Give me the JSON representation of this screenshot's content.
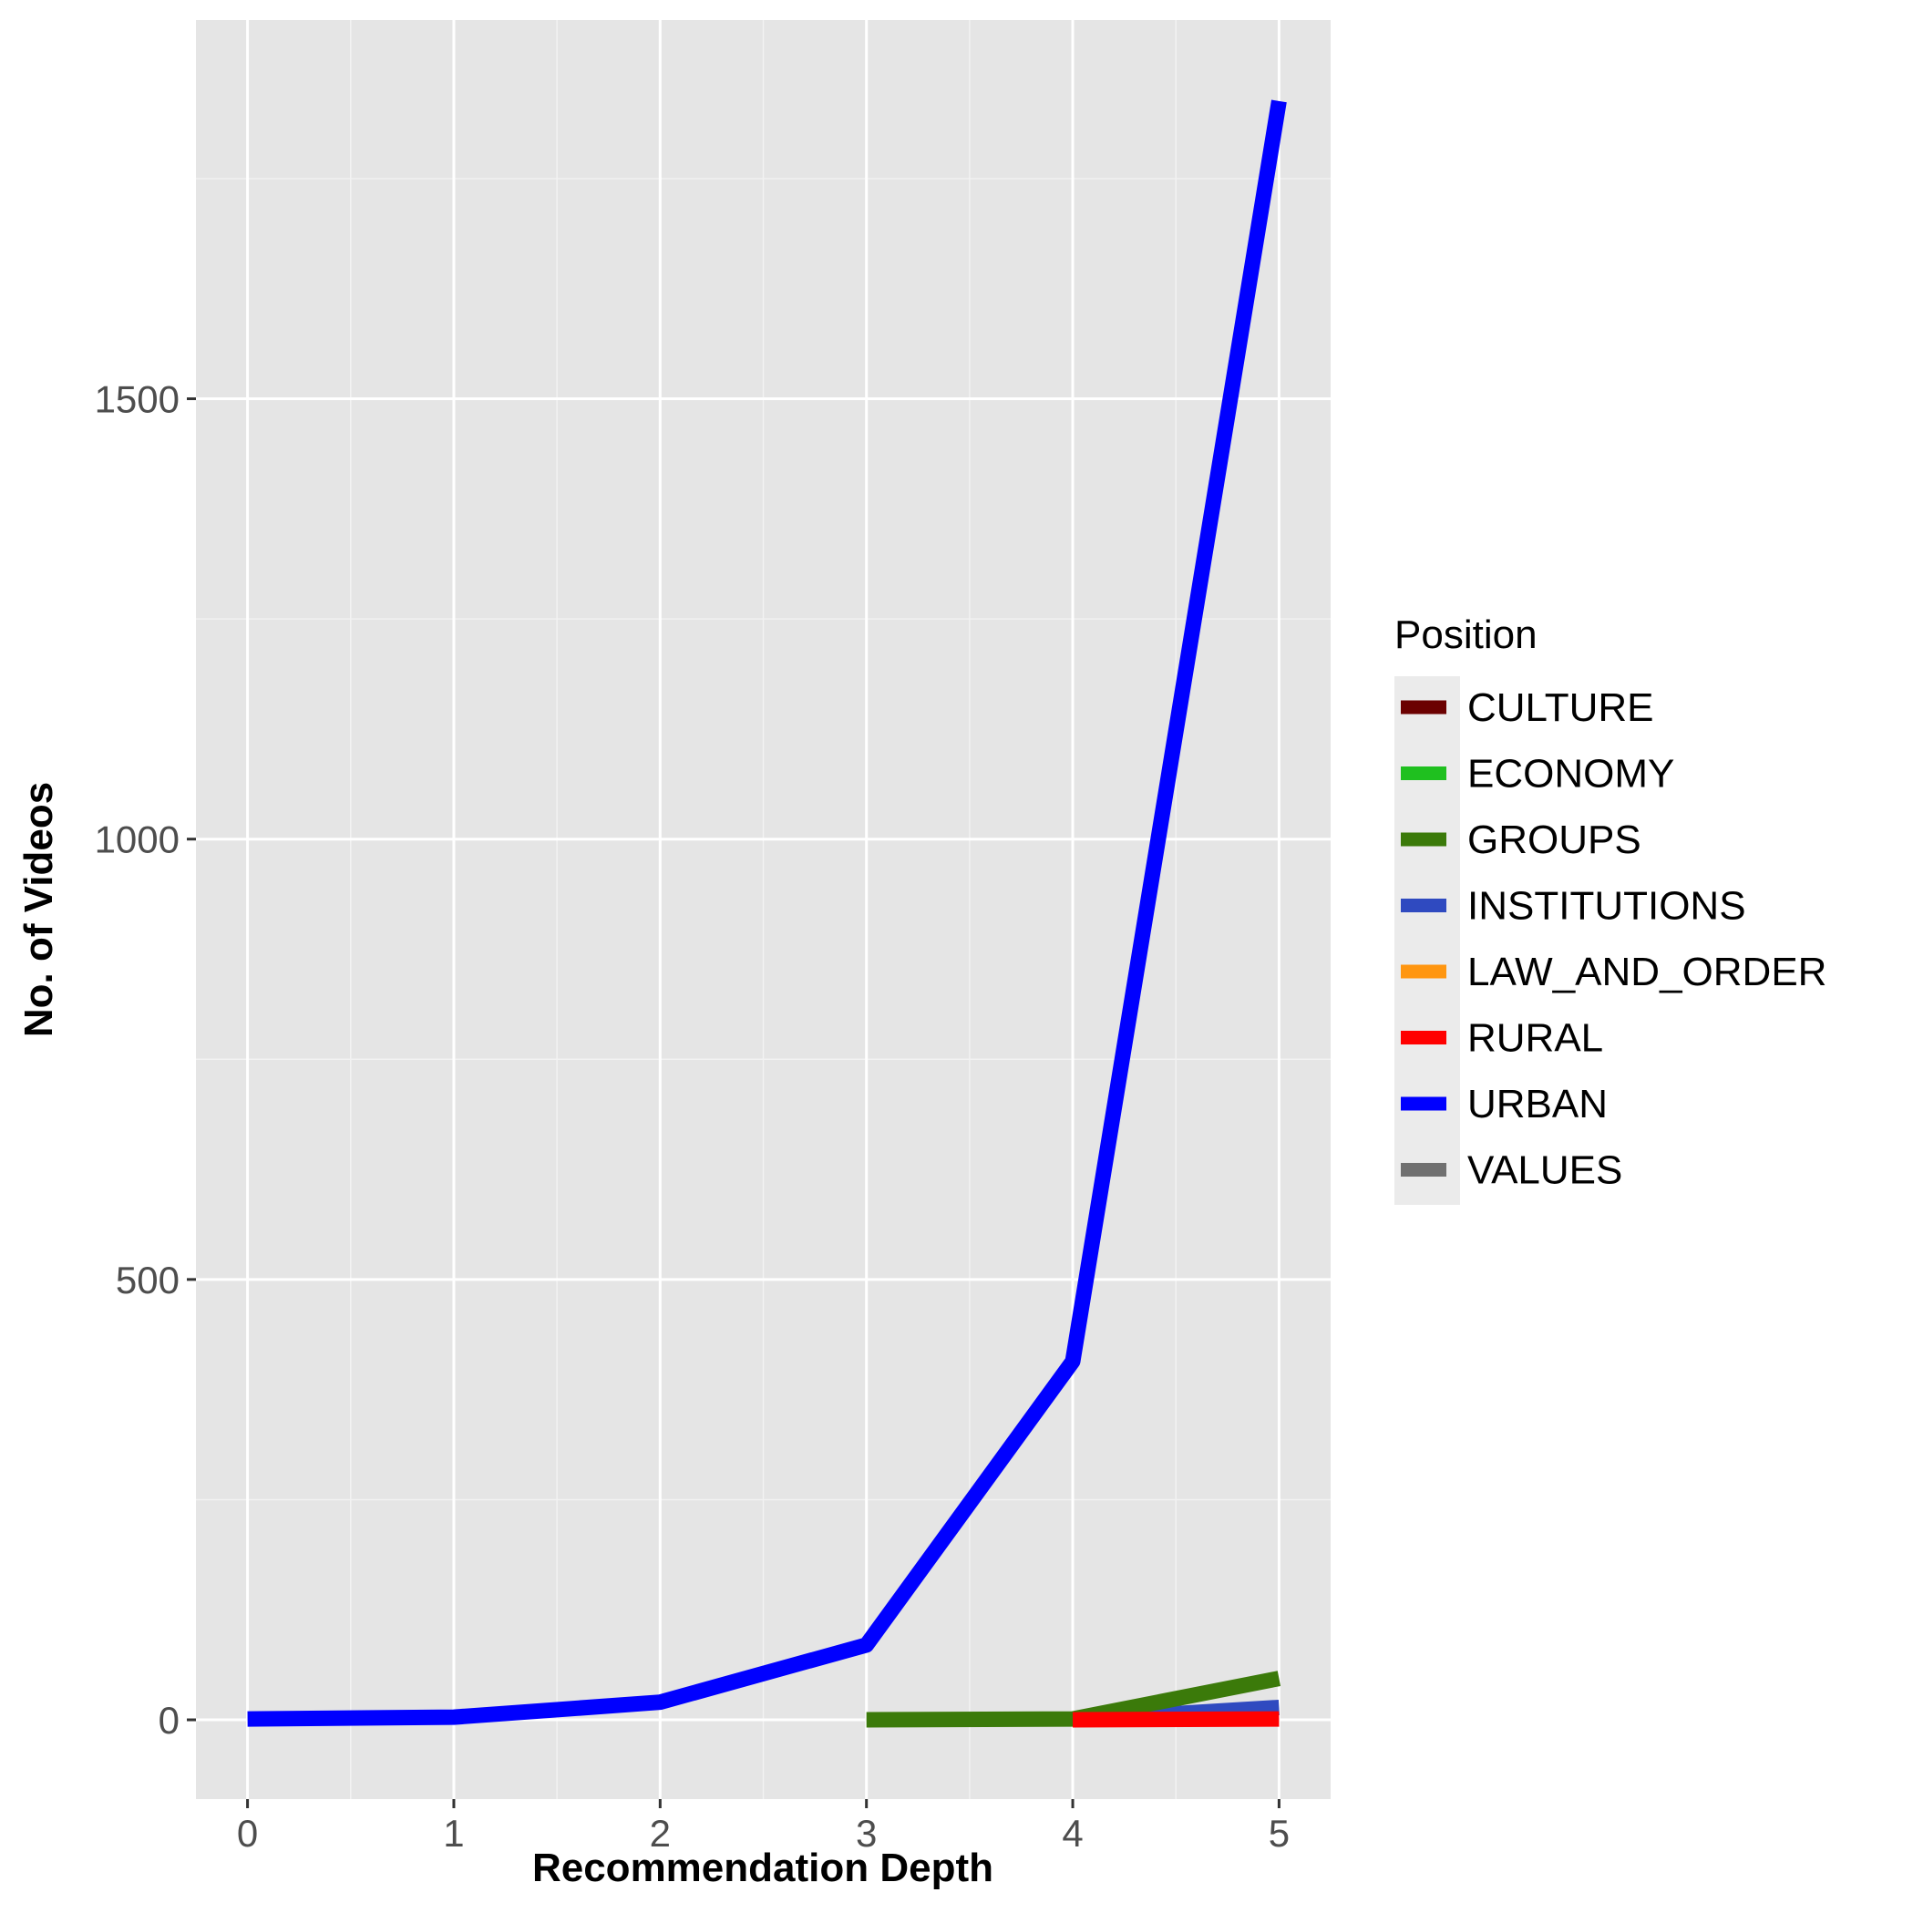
{
  "chart_data": {
    "type": "line",
    "xlabel": "Recommendation Depth",
    "ylabel": "No. of Videos",
    "xlim": [
      -0.25,
      5.25
    ],
    "ylim": [
      -90,
      1930
    ],
    "x_ticks": [
      0,
      1,
      2,
      3,
      4,
      5
    ],
    "y_ticks": [
      0,
      500,
      1000,
      1500
    ],
    "x_tick_labels": [
      "0",
      "1",
      "2",
      "3",
      "4",
      "5"
    ],
    "y_tick_labels": [
      "0",
      "500",
      "1000",
      "1500"
    ],
    "grid": true,
    "legend": {
      "title": "Position",
      "placement": "right"
    },
    "series": [
      {
        "name": "CULTURE",
        "color": "#6b0000",
        "points": []
      },
      {
        "name": "ECONOMY",
        "color": "#1fc01f",
        "points": []
      },
      {
        "name": "GROUPS",
        "color": "#3b7a0a",
        "points": [
          [
            3,
            0
          ],
          [
            4,
            1
          ],
          [
            5,
            47
          ]
        ]
      },
      {
        "name": "INSTITUTIONS",
        "color": "#2f4ac0",
        "points": [
          [
            4,
            0
          ],
          [
            5,
            14
          ]
        ]
      },
      {
        "name": "LAW_AND_ORDER",
        "color": "#ff9610",
        "points": []
      },
      {
        "name": "RURAL",
        "color": "#ff0000",
        "points": [
          [
            4,
            0
          ],
          [
            5,
            1
          ]
        ]
      },
      {
        "name": "URBAN",
        "color": "#0000ff",
        "points": [
          [
            0,
            1
          ],
          [
            1,
            3
          ],
          [
            2,
            20
          ],
          [
            3,
            85
          ],
          [
            4,
            407
          ],
          [
            5,
            1838
          ]
        ]
      },
      {
        "name": "VALUES",
        "color": "#707070",
        "points": []
      }
    ]
  }
}
